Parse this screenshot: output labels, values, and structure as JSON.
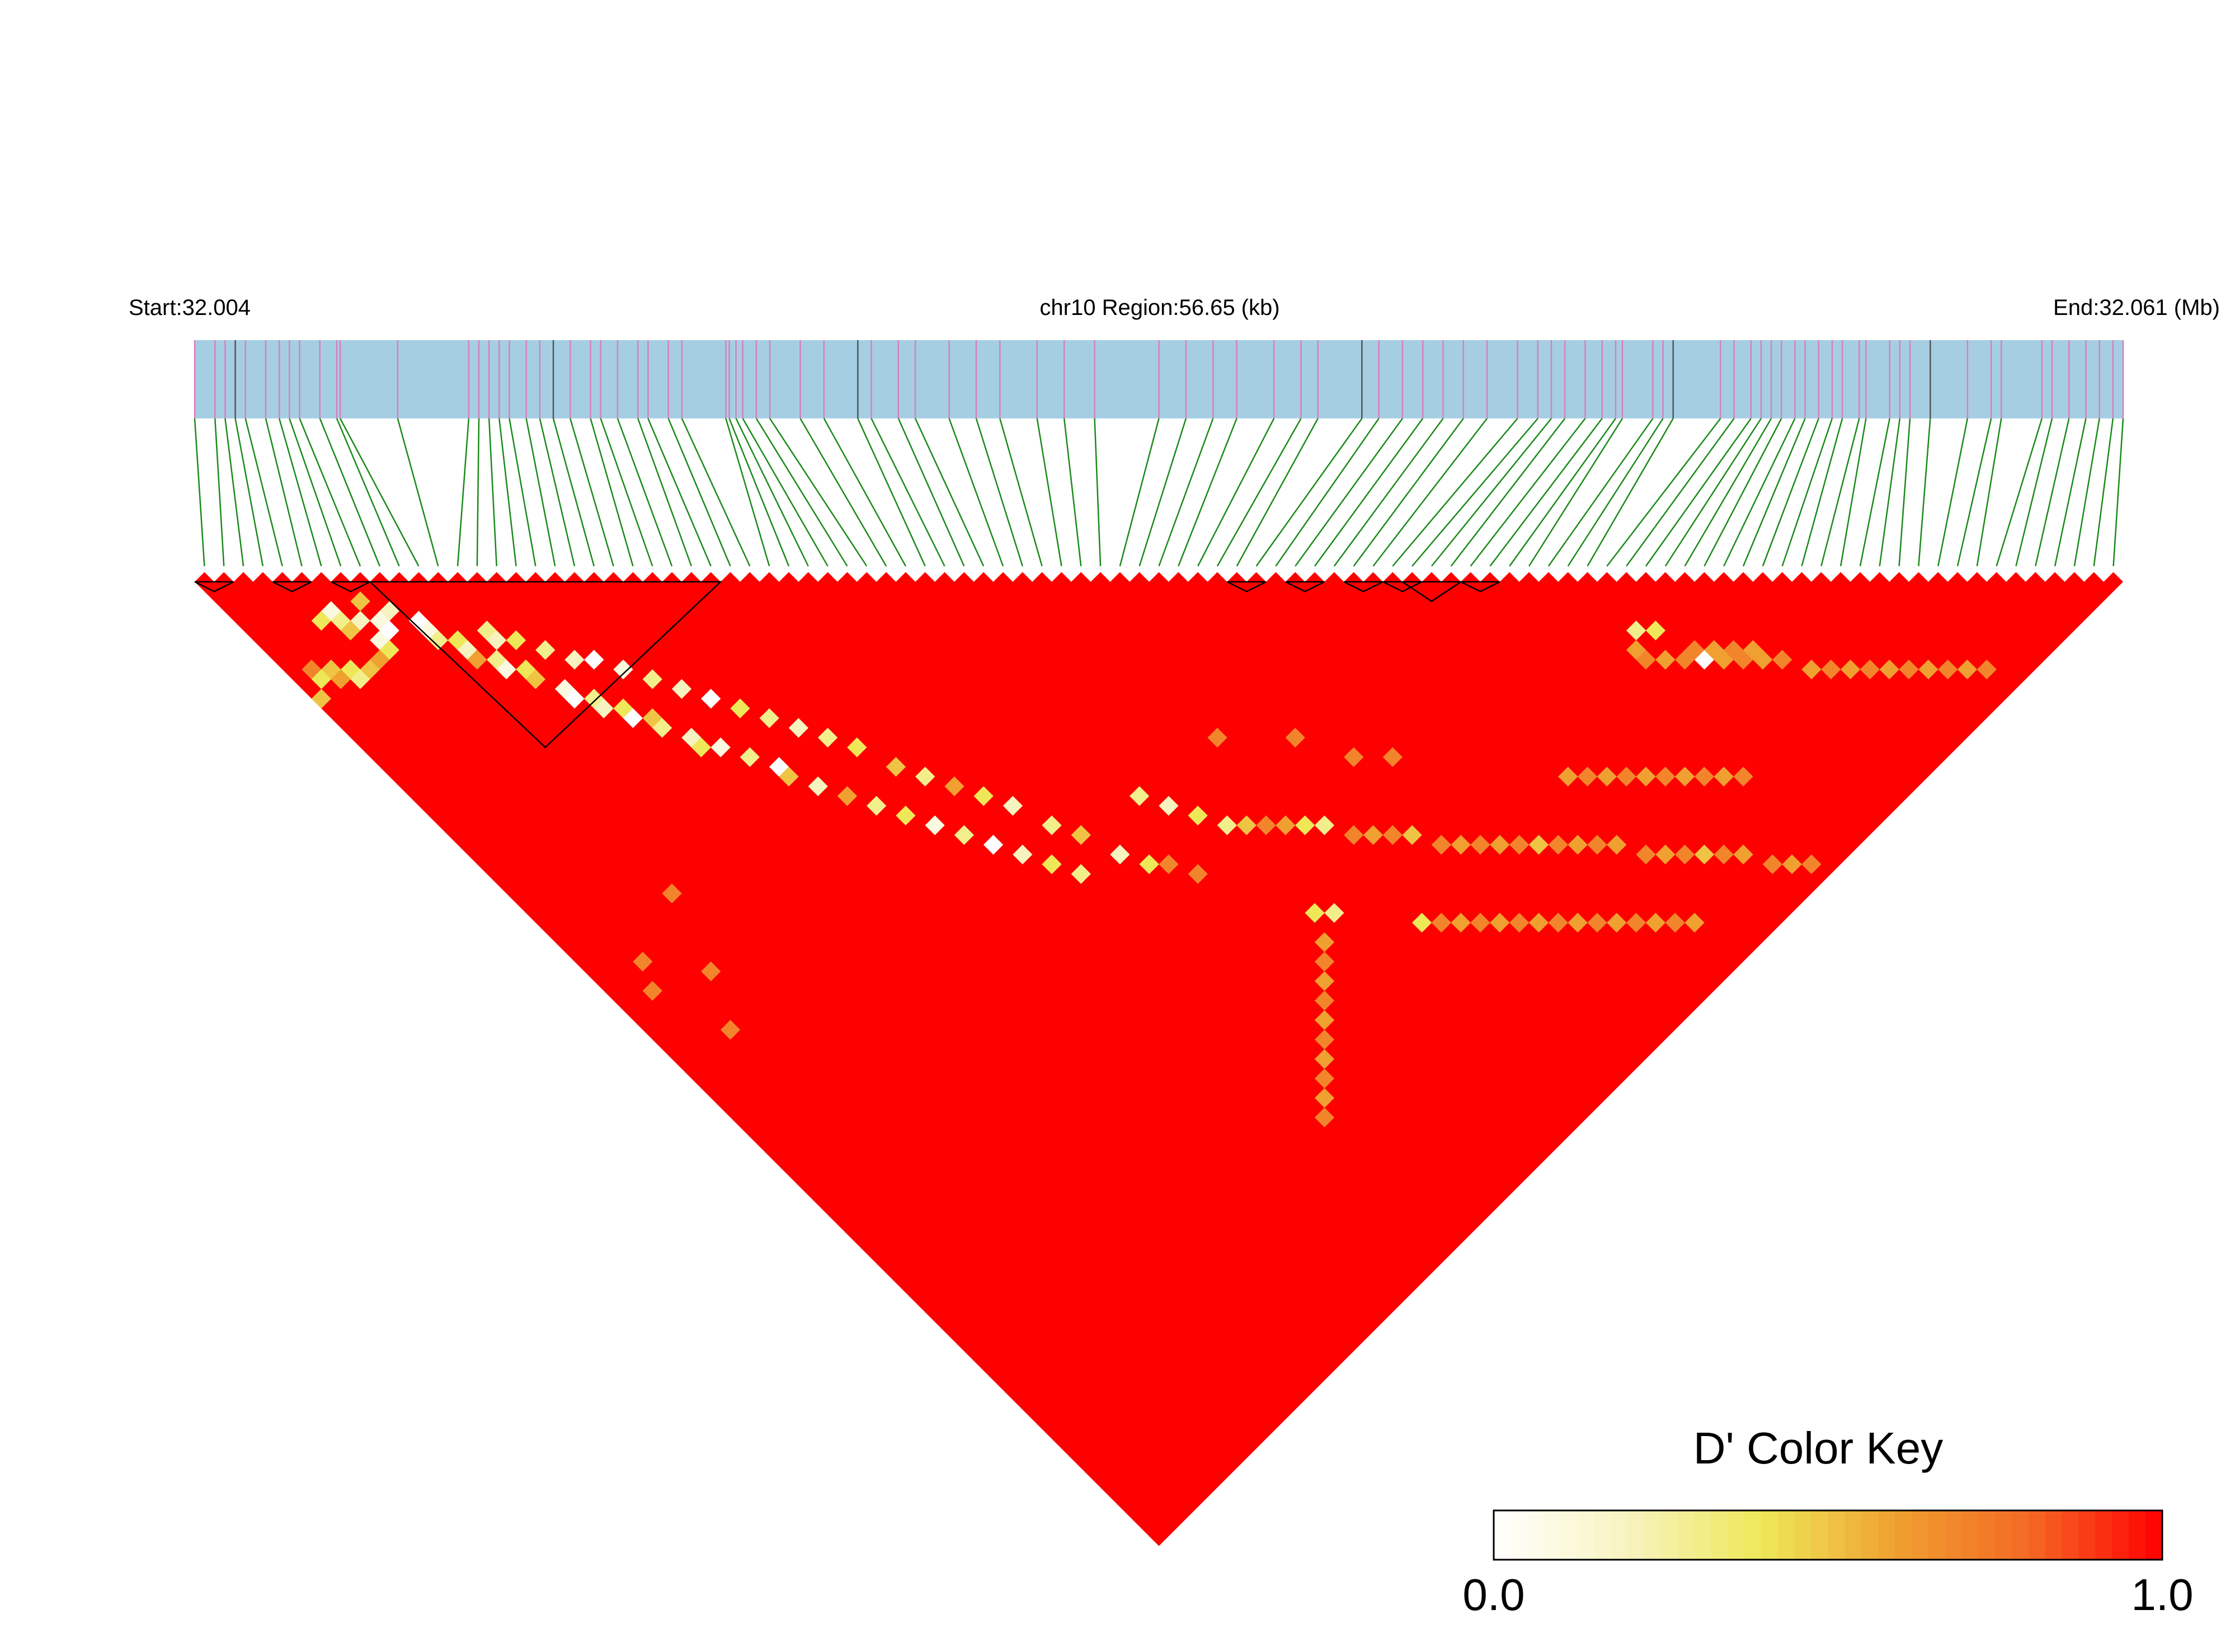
{
  "header": {
    "start_label": "Start:32.004",
    "region_label": "chr10 Region:56.65 (kb)",
    "end_label": "End:32.061 (Mb)"
  },
  "colors": {
    "bar_fill": "#a6cee3",
    "snp_tick": "#d87fbf",
    "snp_tick_dark": "#555555",
    "connector": "#1a8a1a",
    "high_ld": "#ff0000",
    "block_outline": "#000000"
  },
  "legend": {
    "title": "D' Color Key",
    "min_label": "0.0",
    "max_label": "1.0",
    "stops": [
      "#ffffff",
      "#f7f3c0",
      "#eee858",
      "#f0a030",
      "#f46a25",
      "#ff0000"
    ]
  },
  "chart_data": {
    "type": "heatmap",
    "title": "",
    "chromosome": "chr10",
    "start_mb": 32.004,
    "end_mb": 32.061,
    "region_kb": 56.65,
    "metric": "D'",
    "scale_range": [
      0.0,
      1.0
    ],
    "n_snps": 99,
    "snp_positions_mb": [
      32.004,
      32.0046,
      32.0049,
      32.0052,
      32.0055,
      32.0061,
      32.0065,
      32.0068,
      32.0071,
      32.0077,
      32.0082,
      32.0083,
      32.01,
      32.0121,
      32.0124,
      32.0127,
      32.013,
      32.0133,
      32.0138,
      32.0142,
      32.0146,
      32.0151,
      32.0157,
      32.016,
      32.0165,
      32.0171,
      32.0174,
      32.018,
      32.0184,
      32.0197,
      32.0198,
      32.02,
      32.0202,
      32.0206,
      32.021,
      32.0219,
      32.0226,
      32.0236,
      32.024,
      32.0248,
      32.0253,
      32.0263,
      32.0271,
      32.0278,
      32.0289,
      32.0297,
      32.0306,
      32.0325,
      32.0333,
      32.0341,
      32.0348,
      32.0359,
      32.0367,
      32.0372,
      32.0385,
      32.039,
      32.0397,
      32.0403,
      32.0409,
      32.0415,
      32.0422,
      32.0431,
      32.0437,
      32.0441,
      32.0445,
      32.0451,
      32.0456,
      32.046,
      32.0462,
      32.0471,
      32.0474,
      32.0477,
      32.0491,
      32.0495,
      32.05,
      32.0503,
      32.0506,
      32.0509,
      32.0513,
      32.0516,
      32.052,
      32.0524,
      32.0527,
      32.0532,
      32.0534,
      32.0541,
      32.0544,
      32.0547,
      32.0553,
      32.0564,
      32.0571,
      32.0574,
      32.0586,
      32.0589,
      32.0594,
      32.0599,
      32.0603,
      32.0607,
      32.061
    ],
    "haplotype_blocks": [
      [
        0,
        1
      ],
      [
        4,
        5
      ],
      [
        7,
        8
      ],
      [
        9,
        26
      ],
      [
        53,
        54
      ],
      [
        56,
        57
      ],
      [
        59,
        60
      ],
      [
        61,
        62
      ],
      [
        62,
        64
      ],
      [
        65,
        66
      ]
    ],
    "default_dprime": 1.0,
    "low_dprime_cells": [
      {
        "i": 5,
        "j": 8,
        "d": 0.1
      },
      {
        "i": 4,
        "j": 8,
        "d": 0.4
      },
      {
        "i": 5,
        "j": 9,
        "d": 0.3
      },
      {
        "i": 6,
        "j": 10,
        "d": 0.2
      },
      {
        "i": 5,
        "j": 10,
        "d": 0.5
      },
      {
        "i": 7,
        "j": 9,
        "d": 0.5
      },
      {
        "i": 8,
        "j": 11,
        "d": 0.2
      },
      {
        "i": 7,
        "j": 11,
        "d": 0.1
      },
      {
        "i": 7,
        "j": 12,
        "d": 0.0
      },
      {
        "i": 6,
        "j": 12,
        "d": 0.1
      },
      {
        "i": 6,
        "j": 13,
        "d": 0.4
      },
      {
        "i": 5,
        "j": 13,
        "d": 0.6
      },
      {
        "i": 4,
        "j": 13,
        "d": 0.5
      },
      {
        "i": 3,
        "j": 12,
        "d": 0.4
      },
      {
        "i": 3,
        "j": 13,
        "d": 0.3
      },
      {
        "i": 2,
        "j": 12,
        "d": 0.6
      },
      {
        "i": 2,
        "j": 11,
        "d": 0.5
      },
      {
        "i": 1,
        "j": 10,
        "d": 0.7
      },
      {
        "i": 1,
        "j": 11,
        "d": 0.4
      },
      {
        "i": 0,
        "j": 12,
        "d": 0.5
      },
      {
        "i": 9,
        "j": 13,
        "d": 0.0
      },
      {
        "i": 9,
        "j": 14,
        "d": 0.1
      },
      {
        "i": 9,
        "j": 15,
        "d": 0.3
      },
      {
        "i": 10,
        "j": 16,
        "d": 0.4
      },
      {
        "i": 10,
        "j": 17,
        "d": 0.2
      },
      {
        "i": 10,
        "j": 18,
        "d": 0.6
      },
      {
        "i": 11,
        "j": 19,
        "d": 0.3
      },
      {
        "i": 11,
        "j": 20,
        "d": 0.1
      },
      {
        "i": 12,
        "j": 21,
        "d": 0.4
      },
      {
        "i": 12,
        "j": 22,
        "d": 0.5
      },
      {
        "i": 13,
        "j": 24,
        "d": 0.1
      },
      {
        "i": 13,
        "j": 25,
        "d": 0.0
      },
      {
        "i": 14,
        "j": 26,
        "d": 0.3
      },
      {
        "i": 14,
        "j": 27,
        "d": 0.2
      },
      {
        "i": 15,
        "j": 28,
        "d": 0.4
      },
      {
        "i": 15,
        "j": 29,
        "d": 0.0
      },
      {
        "i": 16,
        "j": 30,
        "d": 0.5
      },
      {
        "i": 16,
        "j": 31,
        "d": 0.3
      },
      {
        "i": 17,
        "j": 33,
        "d": 0.2
      },
      {
        "i": 17,
        "j": 34,
        "d": 0.4
      },
      {
        "i": 18,
        "j": 35,
        "d": 0.1
      },
      {
        "i": 19,
        "j": 37,
        "d": 0.3
      },
      {
        "i": 20,
        "j": 39,
        "d": 0.0
      },
      {
        "i": 20,
        "j": 40,
        "d": 0.5
      },
      {
        "i": 21,
        "j": 42,
        "d": 0.2
      },
      {
        "i": 22,
        "j": 44,
        "d": 0.6
      },
      {
        "i": 23,
        "j": 46,
        "d": 0.3
      },
      {
        "i": 24,
        "j": 48,
        "d": 0.4
      },
      {
        "i": 25,
        "j": 50,
        "d": 0.1
      },
      {
        "i": 26,
        "j": 52,
        "d": 0.3
      },
      {
        "i": 27,
        "j": 54,
        "d": 0.0
      },
      {
        "i": 28,
        "j": 56,
        "d": 0.2
      },
      {
        "i": 29,
        "j": 58,
        "d": 0.4
      },
      {
        "i": 30,
        "j": 60,
        "d": 0.3
      },
      {
        "i": 12,
        "j": 17,
        "d": 0.3
      },
      {
        "i": 12,
        "j": 18,
        "d": 0.2
      },
      {
        "i": 13,
        "j": 19,
        "d": 0.4
      },
      {
        "i": 14,
        "j": 21,
        "d": 0.3
      },
      {
        "i": 15,
        "j": 23,
        "d": 0.2
      },
      {
        "i": 16,
        "j": 24,
        "d": 0.0
      },
      {
        "i": 17,
        "j": 26,
        "d": 0.1
      },
      {
        "i": 18,
        "j": 28,
        "d": 0.3
      },
      {
        "i": 19,
        "j": 30,
        "d": 0.2
      },
      {
        "i": 20,
        "j": 32,
        "d": 0.0
      },
      {
        "i": 21,
        "j": 34,
        "d": 0.4
      },
      {
        "i": 22,
        "j": 36,
        "d": 0.3
      },
      {
        "i": 23,
        "j": 38,
        "d": 0.2
      },
      {
        "i": 24,
        "j": 40,
        "d": 0.3
      },
      {
        "i": 25,
        "j": 42,
        "d": 0.4
      },
      {
        "i": 26,
        "j": 45,
        "d": 0.5
      },
      {
        "i": 27,
        "j": 47,
        "d": 0.3
      },
      {
        "i": 28,
        "j": 49,
        "d": 0.6
      },
      {
        "i": 29,
        "j": 51,
        "d": 0.4
      },
      {
        "i": 30,
        "j": 53,
        "d": 0.2
      },
      {
        "i": 31,
        "j": 56,
        "d": 0.3
      },
      {
        "i": 32,
        "j": 58,
        "d": 0.5
      },
      {
        "i": 33,
        "j": 61,
        "d": 0.2
      },
      {
        "i": 34,
        "j": 63,
        "d": 0.4
      },
      {
        "i": 37,
        "j": 59,
        "d": 0.3
      },
      {
        "i": 38,
        "j": 61,
        "d": 0.2
      },
      {
        "i": 39,
        "j": 63,
        "d": 0.4
      },
      {
        "i": 40,
        "j": 65,
        "d": 0.3
      },
      {
        "i": 41,
        "j": 66,
        "d": 0.5
      },
      {
        "i": 42,
        "j": 67,
        "d": 0.7
      },
      {
        "i": 43,
        "j": 68,
        "d": 0.6
      },
      {
        "i": 44,
        "j": 69,
        "d": 0.4
      },
      {
        "i": 45,
        "j": 70,
        "d": 0.3
      },
      {
        "i": 46,
        "j": 72,
        "d": 0.7
      },
      {
        "i": 47,
        "j": 73,
        "d": 0.6
      },
      {
        "i": 48,
        "j": 74,
        "d": 0.7
      },
      {
        "i": 49,
        "j": 75,
        "d": 0.5
      },
      {
        "i": 50,
        "j": 77,
        "d": 0.7
      },
      {
        "i": 51,
        "j": 78,
        "d": 0.6
      },
      {
        "i": 52,
        "j": 79,
        "d": 0.7
      },
      {
        "i": 53,
        "j": 80,
        "d": 0.6
      },
      {
        "i": 54,
        "j": 81,
        "d": 0.7
      },
      {
        "i": 55,
        "j": 82,
        "d": 0.5
      },
      {
        "i": 56,
        "j": 83,
        "d": 0.7
      },
      {
        "i": 57,
        "j": 84,
        "d": 0.6
      },
      {
        "i": 58,
        "j": 85,
        "d": 0.7
      },
      {
        "i": 59,
        "j": 86,
        "d": 0.6
      },
      {
        "i": 60,
        "j": 88,
        "d": 0.7
      },
      {
        "i": 61,
        "j": 89,
        "d": 0.6
      },
      {
        "i": 62,
        "j": 90,
        "d": 0.7
      },
      {
        "i": 63,
        "j": 91,
        "d": 0.5
      },
      {
        "i": 64,
        "j": 92,
        "d": 0.7
      },
      {
        "i": 65,
        "j": 93,
        "d": 0.6
      },
      {
        "i": 66,
        "j": 95,
        "d": 0.7
      },
      {
        "i": 67,
        "j": 96,
        "d": 0.6
      },
      {
        "i": 68,
        "j": 97,
        "d": 0.7
      },
      {
        "i": 70,
        "j": 77,
        "d": 0.6
      },
      {
        "i": 70,
        "j": 78,
        "d": 0.7
      },
      {
        "i": 71,
        "j": 79,
        "d": 0.6
      },
      {
        "i": 72,
        "j": 80,
        "d": 0.7
      },
      {
        "i": 73,
        "j": 81,
        "d": 0.0
      },
      {
        "i": 74,
        "j": 82,
        "d": 0.6
      },
      {
        "i": 75,
        "j": 83,
        "d": 0.7
      },
      {
        "i": 76,
        "j": 84,
        "d": 0.6
      },
      {
        "i": 77,
        "j": 85,
        "d": 0.7
      },
      {
        "i": 78,
        "j": 87,
        "d": 0.6
      },
      {
        "i": 79,
        "j": 88,
        "d": 0.7
      },
      {
        "i": 80,
        "j": 89,
        "d": 0.6
      },
      {
        "i": 81,
        "j": 90,
        "d": 0.7
      },
      {
        "i": 82,
        "j": 91,
        "d": 0.6
      },
      {
        "i": 83,
        "j": 92,
        "d": 0.7
      },
      {
        "i": 84,
        "j": 93,
        "d": 0.6
      },
      {
        "i": 85,
        "j": 94,
        "d": 0.7
      },
      {
        "i": 86,
        "j": 95,
        "d": 0.6
      },
      {
        "i": 87,
        "j": 96,
        "d": 0.7
      },
      {
        "i": 71,
        "j": 76,
        "d": 0.3
      },
      {
        "i": 72,
        "j": 77,
        "d": 0.4
      },
      {
        "i": 73,
        "j": 80,
        "d": 0.7
      },
      {
        "i": 74,
        "j": 81,
        "d": 0.6
      },
      {
        "i": 75,
        "j": 82,
        "d": 0.7
      },
      {
        "i": 76,
        "j": 83,
        "d": 0.6
      },
      {
        "i": 60,
        "j": 80,
        "d": 0.6
      },
      {
        "i": 61,
        "j": 81,
        "d": 0.7
      },
      {
        "i": 62,
        "j": 82,
        "d": 0.6
      },
      {
        "i": 63,
        "j": 83,
        "d": 0.7
      },
      {
        "i": 64,
        "j": 84,
        "d": 0.6
      },
      {
        "i": 65,
        "j": 85,
        "d": 0.7
      },
      {
        "i": 66,
        "j": 86,
        "d": 0.6
      },
      {
        "i": 67,
        "j": 87,
        "d": 0.7
      },
      {
        "i": 68,
        "j": 88,
        "d": 0.6
      },
      {
        "i": 69,
        "j": 89,
        "d": 0.7
      },
      {
        "i": 45,
        "j": 80,
        "d": 0.4
      },
      {
        "i": 46,
        "j": 81,
        "d": 0.7
      },
      {
        "i": 47,
        "j": 82,
        "d": 0.6
      },
      {
        "i": 48,
        "j": 83,
        "d": 0.7
      },
      {
        "i": 49,
        "j": 84,
        "d": 0.6
      },
      {
        "i": 50,
        "j": 85,
        "d": 0.7
      },
      {
        "i": 51,
        "j": 86,
        "d": 0.6
      },
      {
        "i": 52,
        "j": 87,
        "d": 0.7
      },
      {
        "i": 53,
        "j": 88,
        "d": 0.6
      },
      {
        "i": 54,
        "j": 89,
        "d": 0.7
      },
      {
        "i": 55,
        "j": 90,
        "d": 0.6
      },
      {
        "i": 56,
        "j": 91,
        "d": 0.7
      },
      {
        "i": 57,
        "j": 92,
        "d": 0.6
      },
      {
        "i": 58,
        "j": 93,
        "d": 0.7
      },
      {
        "i": 59,
        "j": 94,
        "d": 0.6
      },
      {
        "i": 40,
        "j": 74,
        "d": 0.4
      },
      {
        "i": 41,
        "j": 75,
        "d": 0.3
      },
      {
        "i": 39,
        "j": 76,
        "d": 0.6
      },
      {
        "i": 38,
        "j": 77,
        "d": 0.7
      },
      {
        "i": 37,
        "j": 78,
        "d": 0.6
      },
      {
        "i": 36,
        "j": 79,
        "d": 0.7
      },
      {
        "i": 35,
        "j": 80,
        "d": 0.6
      },
      {
        "i": 34,
        "j": 81,
        "d": 0.7
      },
      {
        "i": 33,
        "j": 82,
        "d": 0.6
      },
      {
        "i": 32,
        "j": 83,
        "d": 0.7
      },
      {
        "i": 31,
        "j": 84,
        "d": 0.6
      },
      {
        "i": 30,
        "j": 85,
        "d": 0.7
      },
      {
        "i": 35,
        "j": 64,
        "d": 0.7
      },
      {
        "i": 36,
        "j": 66,
        "d": 0.7
      },
      {
        "i": 44,
        "j": 60,
        "d": 0.7
      },
      {
        "i": 48,
        "j": 64,
        "d": 0.7
      },
      {
        "i": 52,
        "j": 70,
        "d": 0.7
      },
      {
        "i": 50,
        "j": 68,
        "d": 0.7
      },
      {
        "i": 3,
        "j": 42,
        "d": 0.7
      },
      {
        "i": 2,
        "j": 44,
        "d": 0.7
      },
      {
        "i": 8,
        "j": 40,
        "d": 0.7
      },
      {
        "i": 6,
        "j": 46,
        "d": 0.7
      },
      {
        "i": 4,
        "j": 50,
        "d": 0.7
      }
    ]
  }
}
